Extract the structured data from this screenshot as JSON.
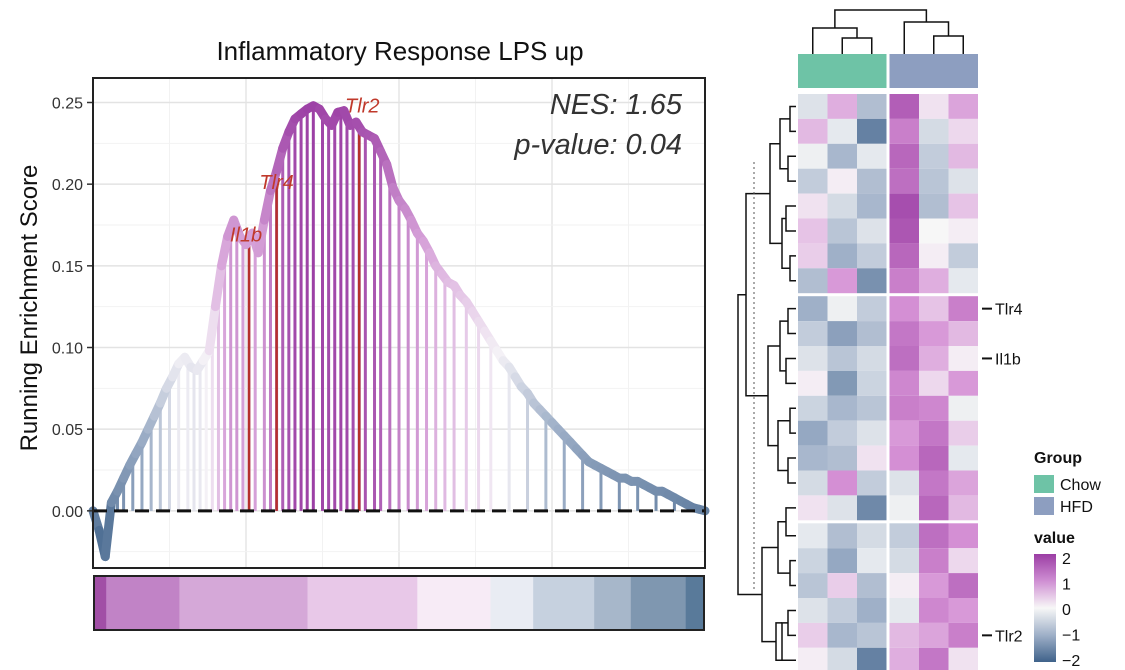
{
  "chart_data": [
    {
      "type": "line",
      "title": "Inflammatory Response LPS up",
      "ylabel": "Running Enrichment Score",
      "xlabel": "",
      "ylim": [
        -0.035,
        0.265
      ],
      "xlim": [
        0,
        1
      ],
      "yticks": [
        0.0,
        0.05,
        0.1,
        0.15,
        0.2,
        0.25
      ],
      "ytick_labels": [
        "0.00",
        "0.05",
        "0.10",
        "0.15",
        "0.20",
        "0.25"
      ],
      "grid": true,
      "annotations": {
        "nes": "NES: 1.65",
        "pvalue": "p-value: 0.04"
      },
      "gene_labels": [
        {
          "label": "Il1b",
          "x": 0.25,
          "y": 0.165
        },
        {
          "label": "Tlr4",
          "x": 0.3,
          "y": 0.197
        },
        {
          "label": "Tlr2",
          "x": 0.44,
          "y": 0.244
        }
      ],
      "running_score": {
        "x": [
          0.0,
          0.01,
          0.02,
          0.03,
          0.04,
          0.05,
          0.06,
          0.07,
          0.08,
          0.09,
          0.1,
          0.11,
          0.12,
          0.13,
          0.14,
          0.15,
          0.16,
          0.17,
          0.18,
          0.19,
          0.2,
          0.21,
          0.22,
          0.23,
          0.24,
          0.25,
          0.26,
          0.27,
          0.28,
          0.29,
          0.3,
          0.31,
          0.32,
          0.33,
          0.34,
          0.35,
          0.36,
          0.37,
          0.38,
          0.39,
          0.4,
          0.41,
          0.42,
          0.43,
          0.44,
          0.45,
          0.46,
          0.47,
          0.48,
          0.49,
          0.5,
          0.51,
          0.52,
          0.53,
          0.54,
          0.55,
          0.56,
          0.57,
          0.58,
          0.59,
          0.6,
          0.61,
          0.62,
          0.63,
          0.64,
          0.65,
          0.66,
          0.67,
          0.68,
          0.69,
          0.7,
          0.71,
          0.72,
          0.73,
          0.74,
          0.75,
          0.76,
          0.77,
          0.78,
          0.79,
          0.8,
          0.81,
          0.82,
          0.83,
          0.84,
          0.85,
          0.86,
          0.87,
          0.88,
          0.89,
          0.9,
          0.91,
          0.92,
          0.93,
          0.94,
          0.95,
          0.96,
          0.97,
          0.98,
          0.99,
          1.0
        ],
        "y": [
          0.0,
          -0.012,
          -0.028,
          0.005,
          0.012,
          0.02,
          0.028,
          0.035,
          0.042,
          0.05,
          0.058,
          0.066,
          0.075,
          0.082,
          0.09,
          0.094,
          0.088,
          0.086,
          0.092,
          0.098,
          0.125,
          0.15,
          0.168,
          0.178,
          0.168,
          0.163,
          0.17,
          0.158,
          0.178,
          0.196,
          0.208,
          0.222,
          0.232,
          0.24,
          0.243,
          0.246,
          0.248,
          0.246,
          0.24,
          0.236,
          0.244,
          0.245,
          0.236,
          0.238,
          0.232,
          0.23,
          0.228,
          0.22,
          0.212,
          0.198,
          0.19,
          0.185,
          0.178,
          0.17,
          0.165,
          0.158,
          0.15,
          0.145,
          0.14,
          0.138,
          0.132,
          0.128,
          0.122,
          0.116,
          0.11,
          0.104,
          0.098,
          0.092,
          0.088,
          0.082,
          0.076,
          0.072,
          0.066,
          0.062,
          0.058,
          0.054,
          0.05,
          0.046,
          0.042,
          0.038,
          0.034,
          0.03,
          0.028,
          0.026,
          0.024,
          0.022,
          0.02,
          0.02,
          0.018,
          0.018,
          0.016,
          0.014,
          0.012,
          0.012,
          0.01,
          0.008,
          0.006,
          0.004,
          0.002,
          0.001,
          0.0
        ]
      },
      "hits": [
        0.04,
        0.05,
        0.065,
        0.08,
        0.095,
        0.11,
        0.125,
        0.14,
        0.155,
        0.165,
        0.175,
        0.185,
        0.195,
        0.205,
        0.215,
        0.225,
        0.235,
        0.245,
        0.255,
        0.265,
        0.28,
        0.29,
        0.3,
        0.31,
        0.32,
        0.33,
        0.34,
        0.35,
        0.36,
        0.375,
        0.385,
        0.395,
        0.405,
        0.415,
        0.425,
        0.435,
        0.445,
        0.46,
        0.47,
        0.485,
        0.5,
        0.515,
        0.53,
        0.545,
        0.56,
        0.575,
        0.59,
        0.61,
        0.63,
        0.65,
        0.68,
        0.71,
        0.74,
        0.77,
        0.8,
        0.83,
        0.86,
        0.89,
        0.92,
        0.95,
        0.975
      ],
      "highlighted_hits": [
        0.255,
        0.3,
        0.435
      ],
      "rank_bar_colors": [
        "#a14fa6",
        "#c183c6",
        "#d5a8d8",
        "#e8c8e8",
        "#f7ebf6",
        "#e9ecf3",
        "#c6d1df",
        "#a7b7ca",
        "#7f97b0",
        "#597a9a"
      ]
    },
    {
      "type": "heatmap",
      "legend_title_group": "Group",
      "group_labels": [
        "Chow",
        "HFD"
      ],
      "group_colors": [
        "#6ec3a6",
        "#8d9ec0"
      ],
      "value_title": "value",
      "value_ticks": [
        "2",
        "1",
        "0",
        "−1",
        "−2"
      ],
      "value_range": [
        -2,
        2
      ],
      "row_labels": [
        {
          "label": "Tlr4",
          "row": 8
        },
        {
          "label": "Il1b",
          "row": 10
        },
        {
          "label": "Tlr2",
          "row": 21
        }
      ],
      "rows": [
        [
          -0.3,
          0.7,
          -0.8,
          1.6,
          0.2,
          0.8
        ],
        [
          0.6,
          -0.2,
          -1.6,
          1.2,
          -0.4,
          0.3
        ],
        [
          -0.1,
          -0.9,
          -0.2,
          1.5,
          -0.6,
          0.6
        ],
        [
          -0.6,
          0.1,
          -0.8,
          1.4,
          -0.7,
          -0.3
        ],
        [
          0.2,
          -0.4,
          -0.9,
          1.8,
          -0.8,
          0.5
        ],
        [
          0.5,
          -0.7,
          -0.3,
          1.7,
          0.0,
          0.1
        ],
        [
          0.4,
          -1.0,
          -0.6,
          1.5,
          0.1,
          -0.6
        ],
        [
          -0.8,
          0.9,
          -1.4,
          1.2,
          0.7,
          -0.2
        ],
        [
          -1.0,
          -0.1,
          -0.6,
          1.0,
          0.5,
          1.2
        ],
        [
          -0.6,
          -1.2,
          -0.8,
          1.3,
          0.9,
          0.6
        ],
        [
          -0.3,
          -0.7,
          -0.4,
          1.4,
          0.7,
          0.1
        ],
        [
          0.1,
          -1.3,
          -0.5,
          1.1,
          0.3,
          0.9
        ],
        [
          -0.5,
          -0.9,
          -0.7,
          1.2,
          1.1,
          -0.1
        ],
        [
          -1.1,
          -0.6,
          -0.3,
          0.9,
          1.3,
          0.4
        ],
        [
          -0.9,
          -0.8,
          0.2,
          1.0,
          1.5,
          -0.2
        ],
        [
          -0.4,
          1.0,
          -0.6,
          -0.3,
          1.3,
          0.8
        ],
        [
          0.2,
          -0.3,
          -1.5,
          -0.1,
          1.5,
          0.6
        ],
        [
          -0.2,
          -0.8,
          -0.4,
          -0.6,
          1.4,
          1.0
        ],
        [
          -0.5,
          -1.1,
          -0.2,
          -0.4,
          1.2,
          0.3
        ],
        [
          -0.7,
          0.4,
          -0.8,
          0.1,
          0.9,
          1.4
        ],
        [
          -0.3,
          -0.6,
          -1.0,
          -0.2,
          1.1,
          0.9
        ],
        [
          0.4,
          -0.9,
          -0.7,
          0.6,
          0.8,
          1.2
        ],
        [
          0.1,
          -0.4,
          -1.6,
          0.7,
          1.3,
          0.2
        ]
      ]
    }
  ]
}
